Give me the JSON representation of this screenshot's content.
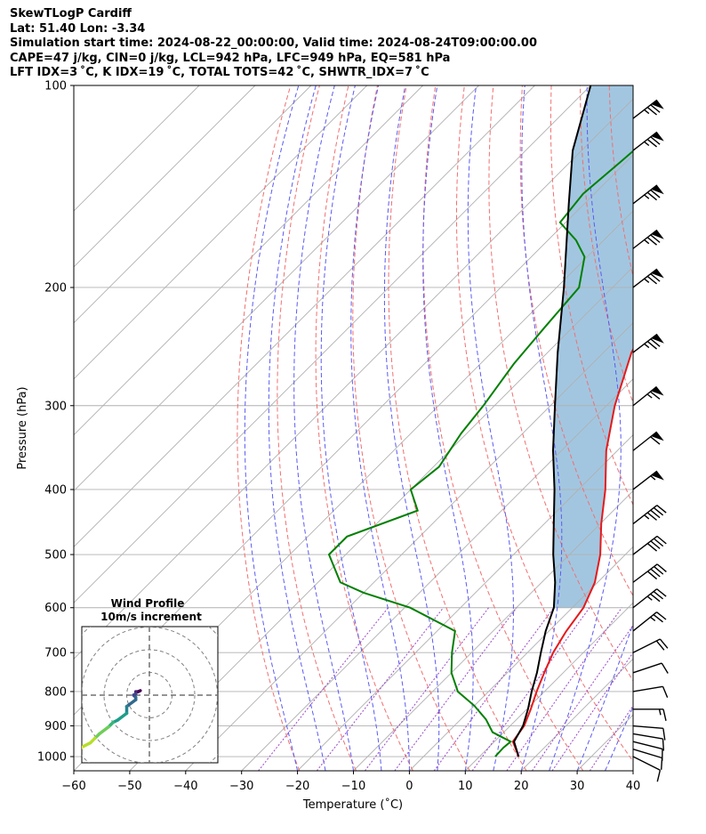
{
  "header": {
    "line1": "SkewTLogP Cardiff",
    "line2": "Lat: 51.40   Lon: -3.34",
    "line3": "Simulation start time: 2024-08-22_00:00:00, Valid time: 2024-08-24T09:00:00.00",
    "line4": "CAPE=47 j/kg, CIN=0 j/kg, LCL=942 hPa, LFC=949 hPa, EQ=581 hPa",
    "line5": "LFT IDX=3 ˚C, K IDX=19 ˚C, TOTAL TOTS=42 ˚C, SHWTR_IDX=7 ˚C"
  },
  "chart_data": {
    "type": "line",
    "title": "SkewTLogP Cardiff",
    "xlabel": "Temperature (˚C)",
    "ylabel": "Pressure (hPa)",
    "xlim": [
      -60,
      40
    ],
    "ylim": [
      1050,
      100
    ],
    "y_scale": "log",
    "grid": true,
    "x_ticks": [
      "−60",
      "−50",
      "−40",
      "−30",
      "−20",
      "−10",
      "0",
      "10",
      "20",
      "30",
      "40"
    ],
    "y_ticks": [
      {
        "p": 100,
        "label": "100"
      },
      {
        "p": 200,
        "label": "200"
      },
      {
        "p": 300,
        "label": "300"
      },
      {
        "p": 400,
        "label": "400"
      },
      {
        "p": 500,
        "label": "500"
      },
      {
        "p": 600,
        "label": "600"
      },
      {
        "p": 700,
        "label": "700"
      },
      {
        "p": 800,
        "label": "800"
      },
      {
        "p": 900,
        "label": "900"
      },
      {
        "p": 1000,
        "label": "1000"
      }
    ],
    "series": [
      {
        "key": "temperature",
        "color": "#e41a1c",
        "points": [
          [
            1000,
            17
          ],
          [
            950,
            13.3
          ],
          [
            900,
            12.5
          ],
          [
            850,
            10.7
          ],
          [
            800,
            8.6
          ],
          [
            750,
            6.6
          ],
          [
            700,
            4.6
          ],
          [
            650,
            3.1
          ],
          [
            600,
            2
          ],
          [
            550,
            -0.5
          ],
          [
            500,
            -4.5
          ],
          [
            450,
            -9.8
          ],
          [
            400,
            -15.2
          ],
          [
            350,
            -22
          ],
          [
            300,
            -28.5
          ],
          [
            250,
            -35
          ],
          [
            225,
            -37.6
          ],
          [
            200,
            -41
          ],
          [
            175,
            -45.5
          ],
          [
            150,
            -50
          ],
          [
            125,
            -55
          ],
          [
            110,
            -58
          ],
          [
            100,
            -60.5
          ]
        ]
      },
      {
        "key": "dewpoint",
        "color": "#008000",
        "points": [
          [
            1000,
            12.8
          ],
          [
            970,
            12.7
          ],
          [
            950,
            12.9
          ],
          [
            920,
            8
          ],
          [
            880,
            4.5
          ],
          [
            840,
            0
          ],
          [
            800,
            -5.5
          ],
          [
            750,
            -10
          ],
          [
            700,
            -13.5
          ],
          [
            650,
            -16.8
          ],
          [
            600,
            -29
          ],
          [
            570,
            -40
          ],
          [
            550,
            -46
          ],
          [
            500,
            -53
          ],
          [
            470,
            -53
          ],
          [
            430,
            -45
          ],
          [
            400,
            -50
          ],
          [
            370,
            -49
          ],
          [
            330,
            -51
          ],
          [
            300,
            -52
          ],
          [
            260,
            -54
          ],
          [
            230,
            -55
          ],
          [
            200,
            -56
          ],
          [
            180,
            -60.5
          ],
          [
            170,
            -65
          ],
          [
            160,
            -71
          ],
          [
            145,
            -72
          ],
          [
            130,
            -71
          ],
          [
            115,
            -70
          ],
          [
            100,
            -70
          ]
        ]
      },
      {
        "key": "parcel",
        "color": "#000000",
        "points": [
          [
            1000,
            17
          ],
          [
            950,
            13.5
          ],
          [
            900,
            12.3
          ],
          [
            850,
            10.2
          ],
          [
            800,
            7.7
          ],
          [
            750,
            5.3
          ],
          [
            700,
            2.4
          ],
          [
            650,
            -0.6
          ],
          [
            600,
            -3.3
          ],
          [
            550,
            -7.6
          ],
          [
            500,
            -12.9
          ],
          [
            450,
            -18.3
          ],
          [
            400,
            -24.3
          ],
          [
            350,
            -31.5
          ],
          [
            300,
            -39.2
          ],
          [
            250,
            -48.2
          ],
          [
            200,
            -58.7
          ],
          [
            150,
            -72.8
          ],
          [
            125,
            -81.6
          ],
          [
            100,
            -90
          ]
        ]
      }
    ],
    "cape_fill_color": "#a2c6e0",
    "dry_adiabats_k": [
      250,
      260,
      270,
      280,
      290,
      300,
      310,
      320,
      330,
      340,
      350,
      360,
      370,
      380,
      390,
      400,
      410
    ],
    "moist_adiabats_c": [
      -20,
      -15,
      -10,
      -5,
      0,
      5,
      10,
      15,
      20,
      25,
      30,
      35
    ],
    "mixing_ratios_gkg": [
      0.4,
      1,
      2,
      3,
      5,
      8,
      12,
      16,
      20,
      30
    ],
    "isotherm_step_c": 10,
    "winds": [
      {
        "p": 1000,
        "u": -4,
        "v": 2
      },
      {
        "p": 975,
        "u": -5,
        "v": 1.5
      },
      {
        "p": 950,
        "u": -6,
        "v": 1.5
      },
      {
        "p": 925,
        "u": -6,
        "v": 1
      },
      {
        "p": 900,
        "u": -6,
        "v": 0.5
      },
      {
        "p": 850,
        "u": -7,
        "v": 0
      },
      {
        "p": 800,
        "u": -6,
        "v": -1
      },
      {
        "p": 750,
        "u": -6,
        "v": -2
      },
      {
        "p": 700,
        "u": -10,
        "v": -5
      },
      {
        "p": 650,
        "u": -10,
        "v": -8
      },
      {
        "p": 600,
        "u": -14,
        "v": -11
      },
      {
        "p": 550,
        "u": -16,
        "v": -12
      },
      {
        "p": 500,
        "u": -17,
        "v": -13
      },
      {
        "p": 450,
        "u": -18,
        "v": -14
      },
      {
        "p": 400,
        "u": -22,
        "v": -17
      },
      {
        "p": 350,
        "u": -24,
        "v": -19
      },
      {
        "p": 300,
        "u": -26,
        "v": -21
      },
      {
        "p": 250,
        "u": -30,
        "v": -23
      },
      {
        "p": 200,
        "u": -31,
        "v": -24
      }
    ],
    "barb_pressures": [
      1000,
      975,
      950,
      925,
      900,
      850,
      800,
      750,
      700,
      650,
      600,
      550,
      500,
      450,
      400,
      350,
      300,
      250,
      200,
      175,
      150,
      125,
      112
    ]
  },
  "hodograph": {
    "title": "Wind Profile",
    "subtitle": "10m/s increment",
    "ring_step_ms": 10,
    "ring_count": 4
  }
}
